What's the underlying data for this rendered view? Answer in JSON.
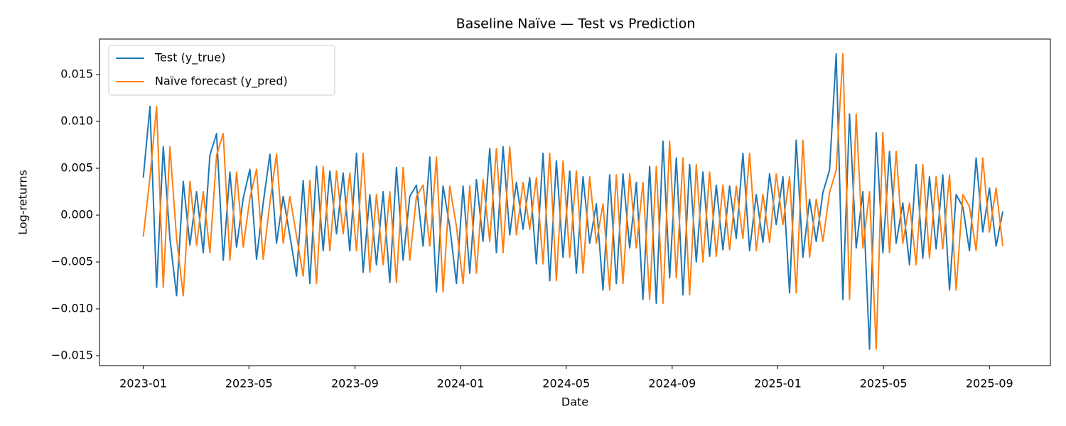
{
  "chart_data": {
    "type": "line",
    "title": "Baseline Naïve — Test vs Prediction",
    "xlabel": "Date",
    "ylabel": "Log-returns",
    "x": [
      2023.0,
      2023.021,
      2023.042,
      2023.063,
      2023.084,
      2023.105,
      2023.126,
      2023.147,
      2023.168,
      2023.189,
      2023.21,
      2023.231,
      2023.252,
      2023.273,
      2023.294,
      2023.315,
      2023.336,
      2023.357,
      2023.378,
      2023.399,
      2023.42,
      2023.441,
      2023.462,
      2023.483,
      2023.504,
      2023.525,
      2023.546,
      2023.567,
      2023.588,
      2023.609,
      2023.63,
      2023.651,
      2023.672,
      2023.693,
      2023.714,
      2023.735,
      2023.756,
      2023.777,
      2023.798,
      2023.819,
      2023.84,
      2023.861,
      2023.882,
      2023.903,
      2023.924,
      2023.945,
      2023.966,
      2023.987,
      2024.008,
      2024.029,
      2024.05,
      2024.071,
      2024.092,
      2024.113,
      2024.134,
      2024.155,
      2024.176,
      2024.197,
      2024.218,
      2024.239,
      2024.26,
      2024.281,
      2024.302,
      2024.323,
      2024.344,
      2024.365,
      2024.386,
      2024.407,
      2024.428,
      2024.449,
      2024.47,
      2024.491,
      2024.512,
      2024.533,
      2024.554,
      2024.575,
      2024.596,
      2024.617,
      2024.638,
      2024.659,
      2024.68,
      2024.701,
      2024.722,
      2024.743,
      2024.764,
      2024.785,
      2024.806,
      2024.827,
      2024.848,
      2024.869,
      2024.89,
      2024.911,
      2024.932,
      2024.953,
      2024.974,
      2024.995,
      2025.016,
      2025.037,
      2025.058,
      2025.079,
      2025.1,
      2025.121,
      2025.142,
      2025.163,
      2025.184,
      2025.205,
      2025.226,
      2025.247,
      2025.268,
      2025.289,
      2025.31,
      2025.331,
      2025.352,
      2025.373,
      2025.394,
      2025.415,
      2025.436,
      2025.457,
      2025.478,
      2025.499,
      2025.52,
      2025.541,
      2025.562,
      2025.583,
      2025.604,
      2025.625,
      2025.646,
      2025.667,
      2025.688,
      2025.709
    ],
    "series": [
      {
        "name": "Test (y_true)",
        "color": "#1f77b4",
        "values": [
          0.004,
          0.0116,
          -0.0077,
          0.0073,
          -0.0025,
          -0.0086,
          0.0036,
          -0.0032,
          0.0025,
          -0.004,
          0.0064,
          0.0087,
          -0.0048,
          0.0046,
          -0.0034,
          0.0018,
          0.0049,
          -0.0047,
          0.0013,
          0.0065,
          -0.003,
          0.002,
          -0.0022,
          -0.0065,
          0.0037,
          -0.0073,
          0.0052,
          -0.0038,
          0.0047,
          -0.002,
          0.0045,
          -0.0038,
          0.0066,
          -0.0061,
          0.0022,
          -0.0053,
          0.0025,
          -0.0072,
          0.0051,
          -0.0048,
          0.002,
          0.0032,
          -0.0033,
          0.0062,
          -0.0082,
          0.0031,
          -0.0012,
          -0.0073,
          0.0031,
          -0.0062,
          0.0038,
          -0.0028,
          0.0071,
          -0.004,
          0.0073,
          -0.0021,
          0.0035,
          -0.0015,
          0.004,
          -0.0052,
          0.0066,
          -0.007,
          0.0058,
          -0.0045,
          0.0047,
          -0.0062,
          0.0041,
          -0.003,
          0.0012,
          -0.008,
          0.0043,
          -0.0073,
          0.0044,
          -0.0035,
          0.0035,
          -0.009,
          0.0052,
          -0.0094,
          0.0079,
          -0.0067,
          0.0061,
          -0.0085,
          0.0054,
          -0.005,
          0.0046,
          -0.0044,
          0.0032,
          -0.0037,
          0.0031,
          -0.0025,
          0.0066,
          -0.0038,
          0.0022,
          -0.0029,
          0.0044,
          -0.001,
          0.0041,
          -0.0083,
          0.008,
          -0.0045,
          0.0017,
          -0.0028,
          0.0024,
          0.0048,
          0.0172,
          -0.009,
          0.0108,
          -0.0035,
          0.0025,
          -0.0143,
          0.0088,
          -0.004,
          0.0068,
          -0.003,
          0.0013,
          -0.0053,
          0.0054,
          -0.0046,
          0.0041,
          -0.0036,
          0.0043,
          -0.008,
          0.0022,
          0.0009,
          -0.0038,
          0.0061,
          -0.0018,
          0.0029,
          -0.0033,
          0.0004
        ]
      },
      {
        "name": "Naïve forecast (y_pred)",
        "color": "#ff7f0e",
        "values": [
          -0.0023,
          0.004,
          0.0116,
          -0.0077,
          0.0073,
          -0.0025,
          -0.0086,
          0.0036,
          -0.0032,
          0.0025,
          -0.004,
          0.0064,
          0.0087,
          -0.0048,
          0.0046,
          -0.0034,
          0.0018,
          0.0049,
          -0.0047,
          0.0013,
          0.0065,
          -0.003,
          0.002,
          -0.0022,
          -0.0065,
          0.0037,
          -0.0073,
          0.0052,
          -0.0038,
          0.0047,
          -0.002,
          0.0045,
          -0.0038,
          0.0066,
          -0.0061,
          0.0022,
          -0.0053,
          0.0025,
          -0.0072,
          0.0051,
          -0.0048,
          0.002,
          0.0032,
          -0.0033,
          0.0062,
          -0.0082,
          0.0031,
          -0.0012,
          -0.0073,
          0.0031,
          -0.0062,
          0.0038,
          -0.0028,
          0.0071,
          -0.004,
          0.0073,
          -0.0021,
          0.0035,
          -0.0015,
          0.004,
          -0.0052,
          0.0066,
          -0.007,
          0.0058,
          -0.0045,
          0.0047,
          -0.0062,
          0.0041,
          -0.003,
          0.0012,
          -0.008,
          0.0043,
          -0.0073,
          0.0044,
          -0.0035,
          0.0035,
          -0.009,
          0.0052,
          -0.0094,
          0.0079,
          -0.0067,
          0.0061,
          -0.0085,
          0.0054,
          -0.005,
          0.0046,
          -0.0044,
          0.0032,
          -0.0037,
          0.0031,
          -0.0025,
          0.0066,
          -0.0038,
          0.0022,
          -0.0029,
          0.0044,
          -0.001,
          0.0041,
          -0.0083,
          0.008,
          -0.0045,
          0.0017,
          -0.0028,
          0.0024,
          0.0048,
          0.0172,
          -0.009,
          0.0108,
          -0.0035,
          0.0025,
          -0.0143,
          0.0088,
          -0.004,
          0.0068,
          -0.003,
          0.0013,
          -0.0053,
          0.0054,
          -0.0046,
          0.0041,
          -0.0036,
          0.0043,
          -0.008,
          0.0022,
          0.0009,
          -0.0038,
          0.0061,
          -0.0018,
          0.0029,
          -0.0033
        ]
      }
    ],
    "xlim": [
      2022.862,
      2025.859
    ],
    "xticks": [
      {
        "value": 2023.0,
        "label": "2023-01"
      },
      {
        "value": 2023.333,
        "label": "2023-05"
      },
      {
        "value": 2023.667,
        "label": "2023-09"
      },
      {
        "value": 2024.0,
        "label": "2024-01"
      },
      {
        "value": 2024.333,
        "label": "2024-05"
      },
      {
        "value": 2024.667,
        "label": "2024-09"
      },
      {
        "value": 2025.0,
        "label": "2025-01"
      },
      {
        "value": 2025.333,
        "label": "2025-05"
      },
      {
        "value": 2025.667,
        "label": "2025-09"
      }
    ],
    "ylim": [
      -0.01606,
      0.01879
    ],
    "yticks": [
      {
        "value": -0.015,
        "label": "−0.015"
      },
      {
        "value": -0.01,
        "label": "−0.010"
      },
      {
        "value": -0.005,
        "label": "−0.005"
      },
      {
        "value": 0,
        "label": "0.000"
      },
      {
        "value": 0.005,
        "label": "0.005"
      },
      {
        "value": 0.01,
        "label": "0.010"
      },
      {
        "value": 0.015,
        "label": "0.015"
      }
    ],
    "legend": "upper left",
    "grid": false
  }
}
